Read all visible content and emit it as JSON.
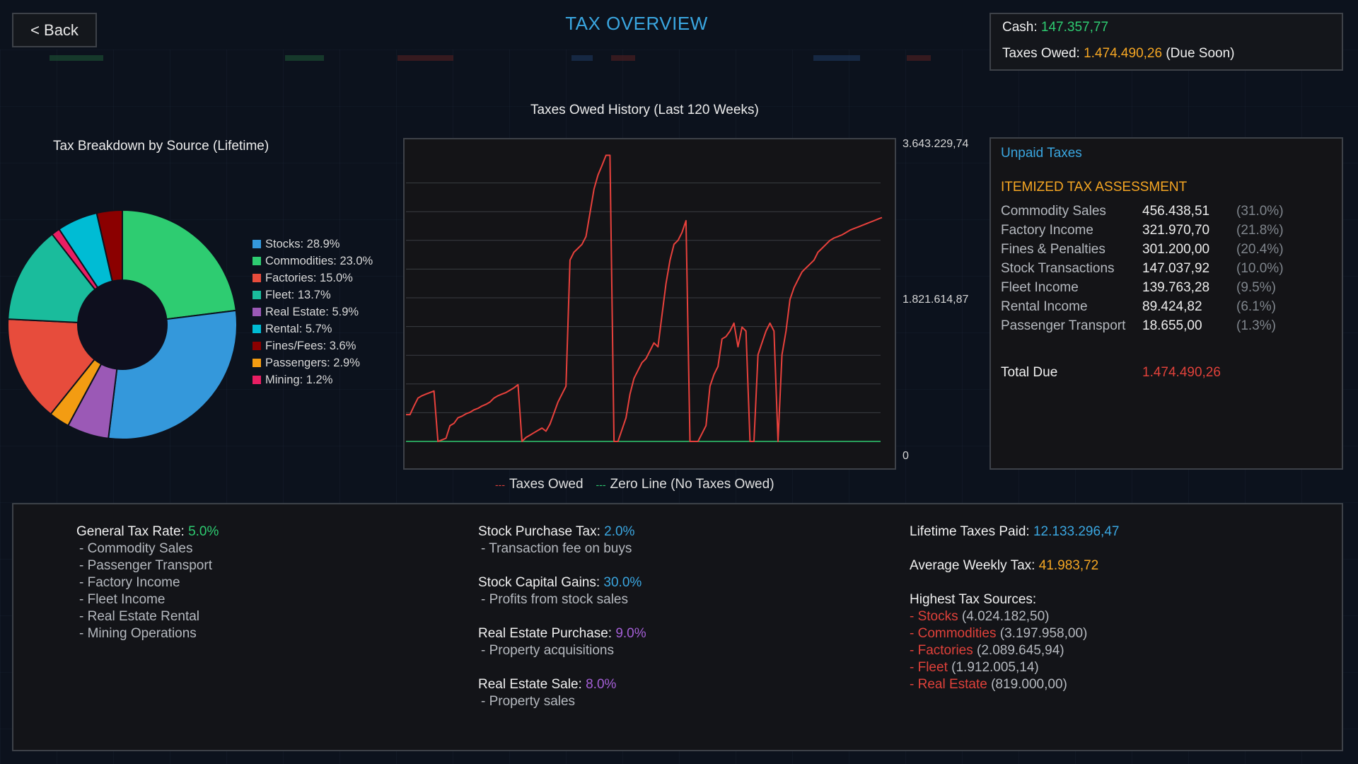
{
  "header": {
    "back_label": "< Back",
    "title": "TAX OVERVIEW"
  },
  "cash_box": {
    "cash_label": "Cash:",
    "cash_value": "147.357,77",
    "taxes_label": "Taxes Owed:",
    "taxes_value": "1.474.490,26",
    "taxes_note": "(Due Soon)"
  },
  "colors": {
    "accent_blue": "#3aa6e0",
    "green": "#2ecc71",
    "orange": "#f5a623",
    "red": "#e0413a",
    "purple": "#a45fd6"
  },
  "pie_chart": {
    "chart_data": {
      "type": "pie",
      "title": "Tax Breakdown by Source (Lifetime)",
      "donut": true,
      "legend_position": "right",
      "slices": [
        {
          "label": "Stocks",
          "value": 28.9,
          "legend": "Stocks: 28.9%",
          "color": "#3498db"
        },
        {
          "label": "Commodities",
          "value": 23.0,
          "legend": "Commodities: 23.0%",
          "color": "#2ecc71"
        },
        {
          "label": "Factories",
          "value": 15.0,
          "legend": "Factories: 15.0%",
          "color": "#e74c3c"
        },
        {
          "label": "Fleet",
          "value": 13.7,
          "legend": "Fleet: 13.7%",
          "color": "#1abc9c"
        },
        {
          "label": "Real Estate",
          "value": 5.9,
          "legend": "Real Estate: 5.9%",
          "color": "#9b59b6"
        },
        {
          "label": "Rental",
          "value": 5.7,
          "legend": "Rental: 5.7%",
          "color": "#00bcd4"
        },
        {
          "label": "Fines/Fees",
          "value": 3.6,
          "legend": "Fines/Fees: 3.6%",
          "color": "#8b0000"
        },
        {
          "label": "Passengers",
          "value": 2.9,
          "legend": "Passengers: 2.9%",
          "color": "#f39c12"
        },
        {
          "label": "Mining",
          "value": 1.2,
          "legend": "Mining: 1.2%",
          "color": "#e91e63"
        }
      ]
    }
  },
  "line_chart": {
    "chart_data": {
      "type": "line",
      "title": "Taxes Owed History (Last 120 Weeks)",
      "xlabel": "",
      "ylabel": "",
      "ylim": [
        0,
        3643229.74
      ],
      "y_ticks": [
        "3.643.229,74",
        "1.821.614,87",
        "0"
      ],
      "grid": true,
      "series": [
        {
          "name": "Taxes Owed",
          "color": "#e8413c",
          "values": [
            340000,
            340000,
            450000,
            550000,
            580000,
            600000,
            620000,
            640000,
            0,
            20000,
            40000,
            200000,
            230000,
            300000,
            320000,
            350000,
            370000,
            400000,
            420000,
            450000,
            470000,
            500000,
            550000,
            580000,
            600000,
            620000,
            650000,
            680000,
            720000,
            0,
            50000,
            80000,
            110000,
            140000,
            170000,
            130000,
            220000,
            360000,
            500000,
            600000,
            700000,
            2300000,
            2400000,
            2450000,
            2500000,
            2600000,
            2900000,
            3200000,
            3380000,
            3500000,
            3630000,
            3630000,
            0,
            0,
            150000,
            300000,
            600000,
            800000,
            900000,
            1000000,
            1050000,
            1150000,
            1250000,
            1200000,
            1600000,
            2000000,
            2300000,
            2500000,
            2550000,
            2650000,
            2800000,
            0,
            0,
            0,
            100000,
            200000,
            700000,
            850000,
            950000,
            1300000,
            1330000,
            1400000,
            1500000,
            1200000,
            1450000,
            1400000,
            0,
            0,
            1100000,
            1250000,
            1400000,
            1500000,
            1400000,
            0,
            1100000,
            1400000,
            1800000,
            1950000,
            2050000,
            2150000,
            2200000,
            2250000,
            2300000,
            2400000,
            2450000,
            2500000,
            2550000,
            2580000,
            2600000,
            2620000,
            2650000,
            2680000,
            2700000,
            2720000,
            2740000,
            2760000,
            2780000,
            2800000,
            2820000,
            2840000
          ]
        },
        {
          "name": "Zero Line (No Taxes Owed)",
          "color": "#2ecc71",
          "values": [
            0
          ]
        }
      ]
    }
  },
  "unpaid": {
    "title": "Unpaid Taxes",
    "itemized_title": "ITEMIZED TAX ASSESSMENT",
    "rows": [
      {
        "name": "Commodity Sales",
        "amount": "456.438,51",
        "pct": "(31.0%)"
      },
      {
        "name": "Factory Income",
        "amount": "321.970,70",
        "pct": "(21.8%)"
      },
      {
        "name": "Fines & Penalties",
        "amount": "301.200,00",
        "pct": "(20.4%)"
      },
      {
        "name": "Stock Transactions",
        "amount": "147.037,92",
        "pct": "(10.0%)"
      },
      {
        "name": "Fleet Income",
        "amount": "139.763,28",
        "pct": "(9.5%)"
      },
      {
        "name": "Rental Income",
        "amount": "89.424,82",
        "pct": "(6.1%)"
      },
      {
        "name": "Passenger Transport",
        "amount": "18.655,00",
        "pct": "(1.3%)"
      }
    ],
    "total_label": "Total Due",
    "total_value": "1.474.490,26"
  },
  "rates": {
    "general": {
      "label": "General Tax Rate:",
      "value": "5.0%",
      "items": [
        "- Commodity Sales",
        "- Passenger Transport",
        "- Factory Income",
        "- Fleet Income",
        "- Real Estate Rental",
        "- Mining Operations"
      ]
    },
    "stock_purchase": {
      "label": "Stock Purchase Tax:",
      "value": "2.0%",
      "desc": "- Transaction fee on buys"
    },
    "stock_gains": {
      "label": "Stock Capital Gains:",
      "value": "30.0%",
      "desc": "- Profits from stock sales"
    },
    "re_purchase": {
      "label": "Real Estate Purchase:",
      "value": "9.0%",
      "desc": "- Property acquisitions"
    },
    "re_sale": {
      "label": "Real Estate Sale:",
      "value": "8.0%",
      "desc": "- Property sales"
    }
  },
  "stats": {
    "lifetime_label": "Lifetime Taxes Paid:",
    "lifetime_value": "12.133.296,47",
    "avg_label": "Average Weekly Tax:",
    "avg_value": "41.983,72",
    "highest_label": "Highest Tax Sources:",
    "highest": [
      {
        "name": "- Stocks",
        "value": "(4.024.182,50)"
      },
      {
        "name": "- Commodities",
        "value": "(3.197.958,00)"
      },
      {
        "name": "- Factories",
        "value": "(2.089.645,94)"
      },
      {
        "name": "- Fleet",
        "value": "(1.912.005,14)"
      },
      {
        "name": "- Real Estate",
        "value": "(819.000,00)"
      }
    ]
  }
}
